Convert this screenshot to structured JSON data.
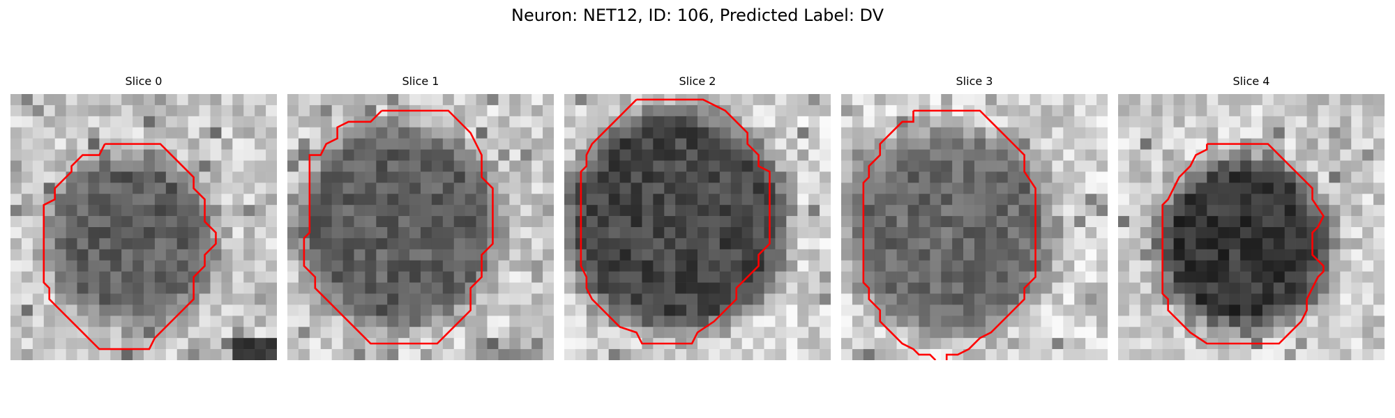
{
  "figure": {
    "title": "Neuron: NET12, ID: 106, Predicted Label: DV"
  },
  "colors": {
    "outline": "#ff0000",
    "background": "#ffffff",
    "colormap": "grayscale"
  },
  "slices": [
    {
      "title": "Slice 0",
      "image_description": "grayscale microscopy patch with a dark roughly circular cell body at centre-right on a light, mottled background; dark patch in the bottom-right corner",
      "outline": [
        [
          8.5,
          4.5
        ],
        [
          13.5,
          4.5
        ],
        [
          16.5,
          7.5
        ],
        [
          16.5,
          8.5
        ],
        [
          17.5,
          9.5
        ],
        [
          17.5,
          11.5
        ],
        [
          18.5,
          12.5
        ],
        [
          18.5,
          13.5
        ],
        [
          17.5,
          14.5
        ],
        [
          17.5,
          15.5
        ],
        [
          16.5,
          16.5
        ],
        [
          16.5,
          18.5
        ],
        [
          15.5,
          19.5
        ],
        [
          13,
          22
        ],
        [
          12.5,
          23
        ],
        [
          8,
          23
        ],
        [
          7.5,
          22.5
        ],
        [
          7,
          22
        ],
        [
          6.5,
          21.5
        ],
        [
          5.5,
          20.5
        ],
        [
          4.5,
          19.5
        ],
        [
          3.5,
          18.5
        ],
        [
          3.5,
          17.5
        ],
        [
          3,
          17
        ],
        [
          3,
          10
        ],
        [
          4,
          9.5
        ],
        [
          4,
          8.5
        ],
        [
          4.5,
          8
        ],
        [
          5.5,
          7
        ],
        [
          5.5,
          6.5
        ],
        [
          6.5,
          5.5
        ],
        [
          8,
          5.5
        ],
        [
          8.5,
          4.5
        ]
      ]
    },
    {
      "title": "Slice 1",
      "image_description": "grayscale microscopy patch with a large dark circular cell body filling most of the frame on a lighter background",
      "outline": [
        [
          8.5,
          1.5
        ],
        [
          14.5,
          1.5
        ],
        [
          16.5,
          3.5
        ],
        [
          17.5,
          5.5
        ],
        [
          17.5,
          7.5
        ],
        [
          18.5,
          8.5
        ],
        [
          18.5,
          10.5
        ],
        [
          18.5,
          13.5
        ],
        [
          17.5,
          14.5
        ],
        [
          17.5,
          16.5
        ],
        [
          16.5,
          17.5
        ],
        [
          16.5,
          19.5
        ],
        [
          15.5,
          20.5
        ],
        [
          14.5,
          21.5
        ],
        [
          13.5,
          22.5
        ],
        [
          7.5,
          22.5
        ],
        [
          6.5,
          21.5
        ],
        [
          5.5,
          20.5
        ],
        [
          4.5,
          19.5
        ],
        [
          3.5,
          18.5
        ],
        [
          2.5,
          17.5
        ],
        [
          2.5,
          16.5
        ],
        [
          1.5,
          15.5
        ],
        [
          1.5,
          13
        ],
        [
          2,
          12.5
        ],
        [
          2,
          5.5
        ],
        [
          3,
          5.5
        ],
        [
          3.5,
          4.5
        ],
        [
          4.5,
          4
        ],
        [
          4.5,
          3
        ],
        [
          5.5,
          2.5
        ],
        [
          7.5,
          2.5
        ],
        [
          8.5,
          1.5
        ]
      ]
    },
    {
      "title": "Slice 2",
      "image_description": "grayscale microscopy patch with a dark circular cell body filling nearly the whole frame, light corners",
      "outline": [
        [
          6.5,
          0.5
        ],
        [
          12.5,
          0.5
        ],
        [
          13.5,
          1
        ],
        [
          14.5,
          1.5
        ],
        [
          15.5,
          2.5
        ],
        [
          16.5,
          3.5
        ],
        [
          16.5,
          4.5
        ],
        [
          17.5,
          5.5
        ],
        [
          17.5,
          6.5
        ],
        [
          18.5,
          7
        ],
        [
          18.5,
          8.5
        ],
        [
          18.5,
          13.5
        ],
        [
          17.5,
          14.5
        ],
        [
          17.5,
          15.5
        ],
        [
          16.5,
          16.5
        ],
        [
          15.5,
          17.5
        ],
        [
          15.5,
          18.5
        ],
        [
          14.5,
          19.5
        ],
        [
          13.5,
          20.5
        ],
        [
          12,
          21.5
        ],
        [
          11.5,
          22.5
        ],
        [
          7,
          22.5
        ],
        [
          6.5,
          21.5
        ],
        [
          5,
          21
        ],
        [
          4.5,
          20.5
        ],
        [
          3.5,
          19.5
        ],
        [
          2.5,
          18.5
        ],
        [
          2,
          17.5
        ],
        [
          2,
          16.5
        ],
        [
          1.5,
          15.5
        ],
        [
          1.5,
          7
        ],
        [
          2,
          6.5
        ],
        [
          2,
          5.5
        ],
        [
          2.5,
          4.5
        ],
        [
          3.5,
          3.5
        ],
        [
          4.5,
          2.5
        ],
        [
          5.5,
          1.5
        ],
        [
          6.5,
          0.5
        ]
      ]
    },
    {
      "title": "Slice 3",
      "image_description": "grayscale microscopy patch with a medium-dark circular cell body on a light speckled background, outline open at the bottom edge",
      "outline": [
        [
          6.5,
          1.5
        ],
        [
          12.5,
          1.5
        ],
        [
          13.5,
          2.5
        ],
        [
          14.5,
          3.5
        ],
        [
          15.5,
          4.5
        ],
        [
          16.5,
          5.5
        ],
        [
          16.5,
          7
        ],
        [
          17.5,
          8.5
        ],
        [
          17.5,
          10
        ],
        [
          17.5,
          16.5
        ],
        [
          16.5,
          17.5
        ],
        [
          16.5,
          18.5
        ],
        [
          15.5,
          19.5
        ],
        [
          14.5,
          20.5
        ],
        [
          13.5,
          21.5
        ],
        [
          12.5,
          22
        ],
        [
          11.5,
          23
        ],
        [
          10.5,
          23.5
        ],
        [
          9.5,
          23.5
        ],
        [
          9.5,
          24
        ]
      ],
      "outline_2": [
        [
          8.5,
          24
        ],
        [
          8,
          23.5
        ],
        [
          7,
          23.5
        ],
        [
          6.5,
          23
        ],
        [
          5.5,
          22.5
        ],
        [
          4.5,
          21.5
        ],
        [
          3.5,
          20.5
        ],
        [
          3.5,
          19.5
        ],
        [
          2.5,
          18.5
        ],
        [
          2.5,
          17.5
        ],
        [
          2,
          17
        ],
        [
          2,
          8
        ],
        [
          2.5,
          7.5
        ],
        [
          2.5,
          6.5
        ],
        [
          3.5,
          5.5
        ],
        [
          3.5,
          4.5
        ],
        [
          4.5,
          3.5
        ],
        [
          5.5,
          2.5
        ],
        [
          6.5,
          2.5
        ],
        [
          6.5,
          1.5
        ]
      ]
    },
    {
      "title": "Slice 4",
      "image_description": "grayscale microscopy patch with a very dark circular cell body on a light speckled background, small notch on the right side of the outline",
      "outline": [
        [
          8,
          4.5
        ],
        [
          13.5,
          4.5
        ],
        [
          14.5,
          5.5
        ],
        [
          15,
          6
        ],
        [
          16.5,
          7.5
        ],
        [
          17.5,
          8.5
        ],
        [
          17.5,
          9.5
        ],
        [
          18.5,
          11
        ],
        [
          18,
          12
        ],
        [
          17.5,
          12.5
        ],
        [
          17.5,
          14.5
        ],
        [
          18,
          15
        ],
        [
          18.5,
          15.5
        ],
        [
          18.5,
          16
        ],
        [
          18,
          16.5
        ],
        [
          17.5,
          17.5
        ],
        [
          17,
          18.5
        ],
        [
          17,
          19.5
        ],
        [
          16.5,
          20.5
        ],
        [
          15.5,
          21.5
        ],
        [
          14.5,
          22.5
        ],
        [
          8,
          22.5
        ],
        [
          6.5,
          21.5
        ],
        [
          5.5,
          20.5
        ],
        [
          4.5,
          19.5
        ],
        [
          4.5,
          18.5
        ],
        [
          4,
          18
        ],
        [
          4,
          10
        ],
        [
          4.5,
          9.5
        ],
        [
          5,
          8.5
        ],
        [
          5.5,
          7.5
        ],
        [
          6.5,
          6.5
        ],
        [
          7,
          5.5
        ],
        [
          8,
          5
        ],
        [
          8,
          4.5
        ]
      ]
    }
  ]
}
